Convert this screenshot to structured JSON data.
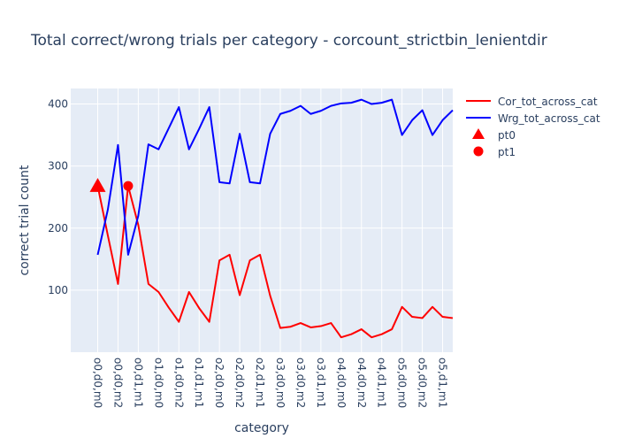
{
  "chart_data": {
    "type": "line",
    "title": "Total correct/wrong trials per category - corcount_strictbin_lenientdir",
    "xlabel": "category",
    "ylabel": "correct trial count",
    "ylim": [
      0,
      425
    ],
    "yticks": [
      100,
      200,
      300,
      400
    ],
    "xtick_labels": [
      "o0,d0,m0",
      "o0,d0,m2",
      "o0,d1,m1",
      "o1,d0,m0",
      "o1,d0,m2",
      "o1,d1,m1",
      "o2,d0,m0",
      "o2,d0,m2",
      "o2,d1,m1",
      "o3,d0,m0",
      "o3,d0,m2",
      "o3,d1,m1",
      "o4,d0,m0",
      "o4,d0,m2",
      "o4,d1,m1",
      "o5,d0,m0",
      "o5,d0,m2",
      "o5,d1,m1"
    ],
    "grid": true,
    "legend_position": "right",
    "series": [
      {
        "name": "Cor_tot_across_cat",
        "color": "#ff0000",
        "values": [
          268,
          188,
          110,
          268,
          205,
          110,
          97,
          72,
          49,
          97,
          71,
          49,
          148,
          157,
          92,
          148,
          157,
          91,
          39,
          41,
          47,
          40,
          42,
          47,
          24,
          29,
          37,
          24,
          29,
          37,
          73,
          57,
          55,
          73,
          57,
          55
        ]
      },
      {
        "name": "Wrg_tot_across_cat",
        "color": "#0000ff",
        "values": [
          157,
          230,
          334,
          157,
          220,
          335,
          327,
          361,
          395,
          327,
          360,
          395,
          274,
          272,
          352,
          274,
          272,
          352,
          384,
          389,
          397,
          384,
          389,
          397,
          401,
          402,
          407,
          400,
          402,
          407,
          350,
          374,
          390,
          350,
          374,
          390
        ]
      }
    ],
    "markers": [
      {
        "name": "pt0",
        "symbol": "triangle-up",
        "color": "#ff0000",
        "x_index": 0,
        "y": 268
      },
      {
        "name": "pt1",
        "symbol": "circle",
        "color": "#ff0000",
        "x_index": 3,
        "y": 268
      }
    ]
  }
}
